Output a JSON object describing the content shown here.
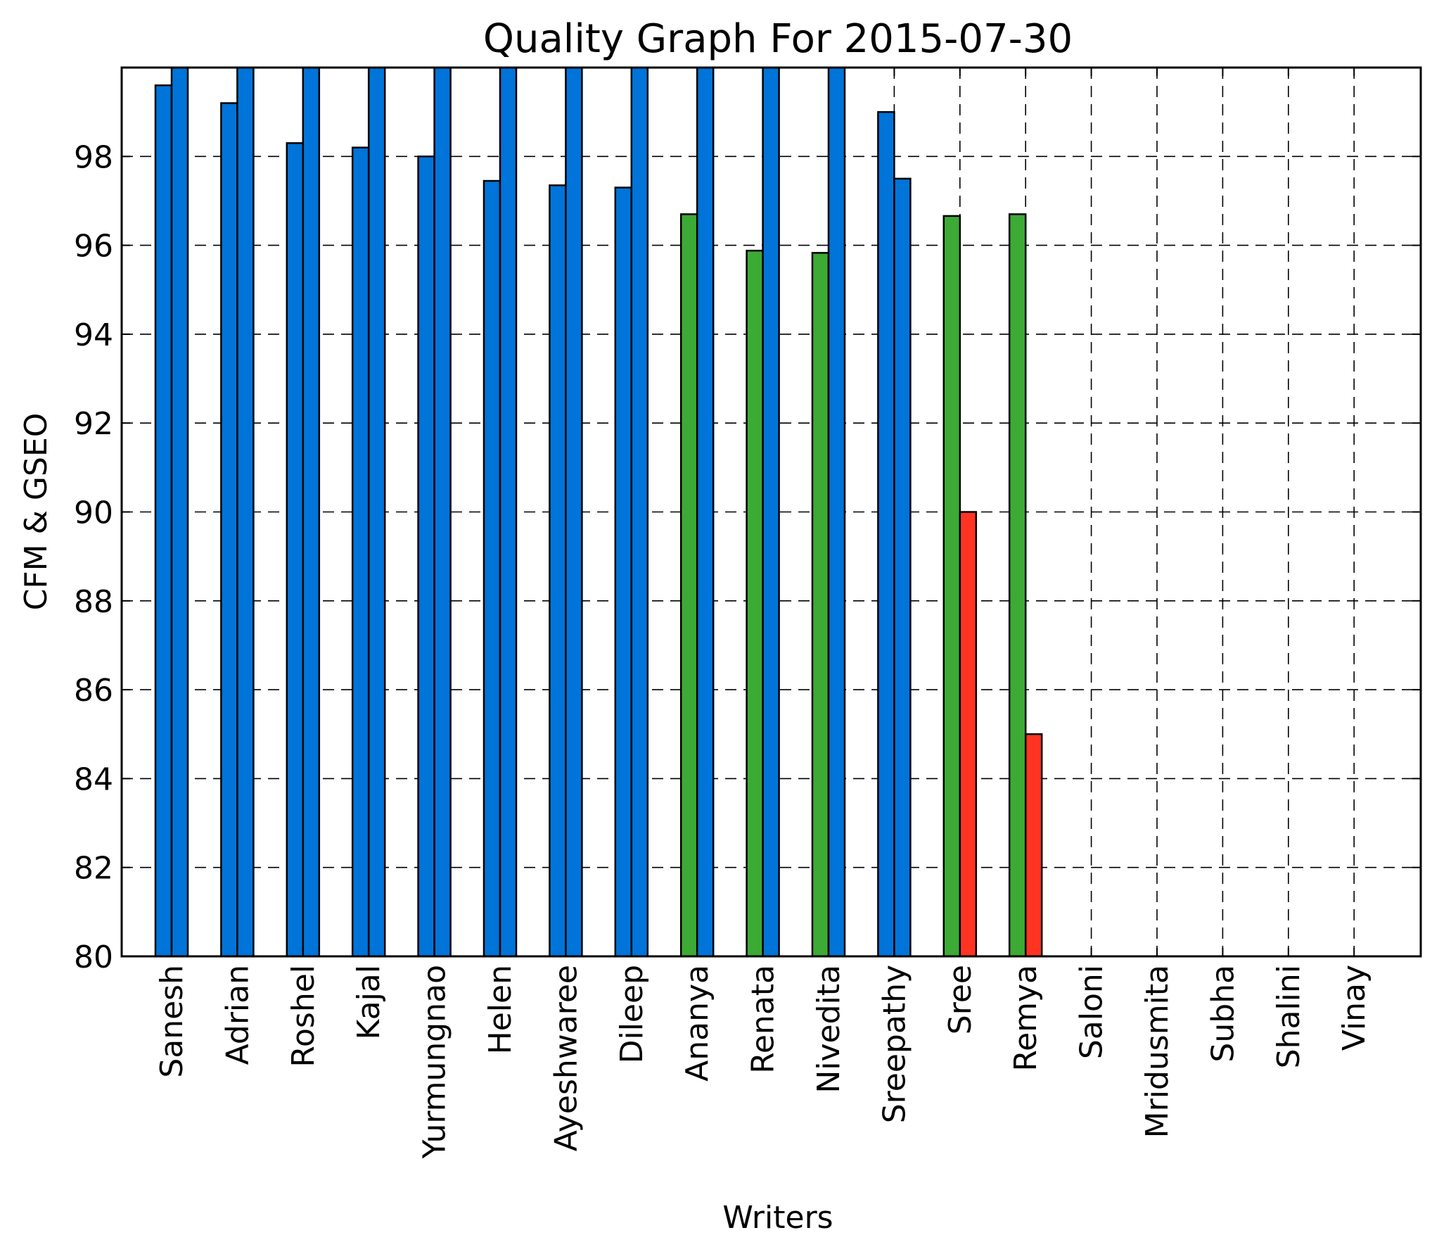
{
  "chart_data": {
    "type": "bar",
    "title": "Quality Graph For 2015-07-30",
    "xlabel": "Writers",
    "ylabel": "CFM & GSEO",
    "ylim": [
      80,
      100
    ],
    "yticks": [
      80,
      82,
      84,
      86,
      88,
      90,
      92,
      94,
      96,
      98
    ],
    "grid": true,
    "categories": [
      "Sanesh",
      "Adrian",
      "Roshel",
      "Kajal",
      "Yurmungnao",
      "Helen",
      "Ayeshwaree",
      "Dileep",
      "Ananya",
      "Renata",
      "Nivedita",
      "Sreepathy",
      "Sree",
      "Remya",
      "Saloni",
      "Mridusmita",
      "Subha",
      "Shalini",
      "Vinay"
    ],
    "series": [
      {
        "values": [
          99.6,
          99.2,
          98.3,
          98.2,
          98.0,
          97.45,
          97.35,
          97.3,
          96.7,
          95.88,
          95.83,
          99.0,
          96.66,
          96.7,
          null,
          null,
          null,
          null,
          null
        ],
        "colors": [
          "#0074d9",
          "#0074d9",
          "#0074d9",
          "#0074d9",
          "#0074d9",
          "#0074d9",
          "#0074d9",
          "#0074d9",
          "#3daa35",
          "#3daa35",
          "#3daa35",
          "#0074d9",
          "#3daa35",
          "#3daa35",
          null,
          null,
          null,
          null,
          null
        ]
      },
      {
        "values": [
          100,
          100,
          100,
          100,
          100,
          100,
          100,
          100,
          100,
          100,
          100,
          97.5,
          90,
          85,
          null,
          null,
          null,
          null,
          null
        ],
        "colors": [
          "#0074d9",
          "#0074d9",
          "#0074d9",
          "#0074d9",
          "#0074d9",
          "#0074d9",
          "#0074d9",
          "#0074d9",
          "#0074d9",
          "#0074d9",
          "#0074d9",
          "#0074d9",
          "#ff3322",
          "#ff3322",
          null,
          null,
          null,
          null,
          null
        ]
      }
    ]
  }
}
